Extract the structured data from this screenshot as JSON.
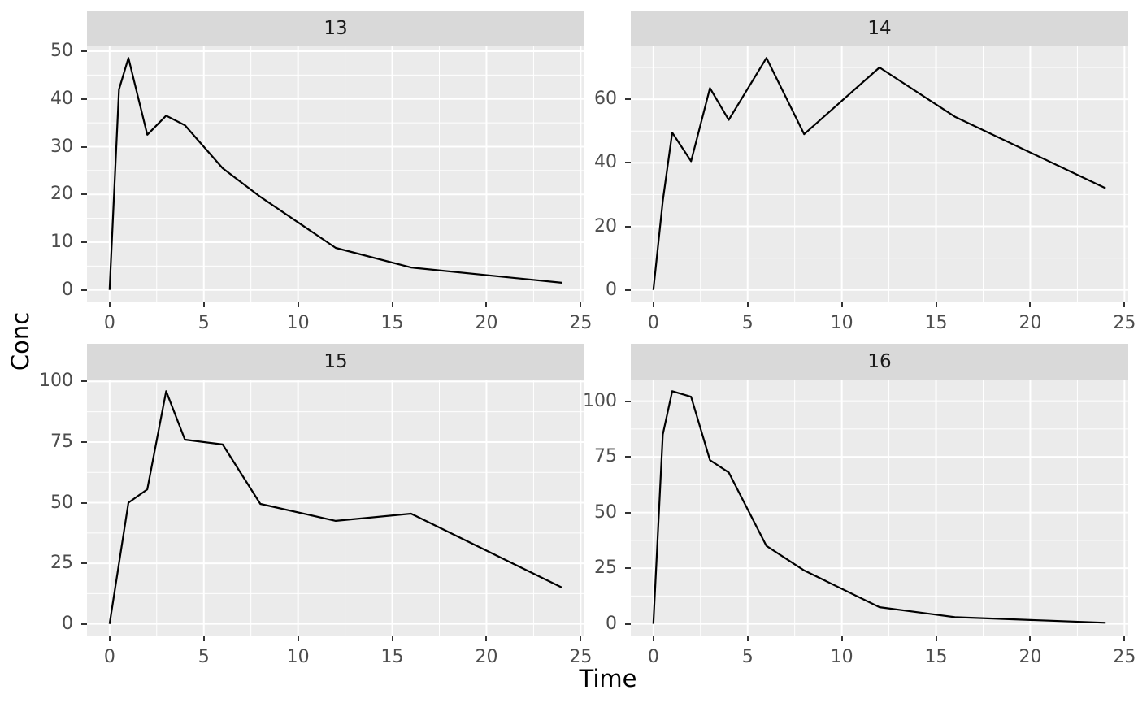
{
  "figure": {
    "background_color": "#FFFFFF",
    "panel_background_color": "#EBEBEB",
    "strip_background_color": "#D9D9D9",
    "grid_color": "#FFFFFF",
    "line_color": "#000000",
    "tick_mark_color": "#333333",
    "tick_label_color": "#4D4D4D",
    "strip_text_color": "#1A1A1A",
    "axis_title_color": "#000000"
  },
  "axis_titles": {
    "x": "Time",
    "y": "Conc"
  },
  "chart_data": {
    "type": "line",
    "style": "ggplot2-grey-faceted",
    "facet_labels": [
      "13",
      "14",
      "15",
      "16"
    ],
    "xlabel": "Time",
    "ylabel": "Conc",
    "x": [
      0,
      0.5,
      1,
      2,
      3,
      4,
      6,
      8,
      12,
      16,
      24
    ],
    "xlim": [
      -1.2,
      25.2
    ],
    "x_ticks": [
      0,
      5,
      10,
      15,
      20,
      25
    ],
    "grid": true,
    "legend": "none",
    "series": [
      {
        "name": "13",
        "values": [
          0,
          42,
          48.6,
          32.5,
          36.5,
          34.5,
          25.5,
          19.5,
          8.8,
          4.7,
          1.5
        ],
        "ylim": [
          -2.43,
          51.03
        ],
        "y_ticks": [
          0,
          10,
          20,
          30,
          40,
          50
        ]
      },
      {
        "name": "14",
        "values": [
          0,
          28,
          49.5,
          40.5,
          63.5,
          53.5,
          73,
          49,
          70,
          54.5,
          32
        ],
        "ylim": [
          -3.65,
          76.65
        ],
        "y_ticks": [
          0,
          20,
          40,
          60
        ]
      },
      {
        "name": "15",
        "values": [
          0,
          25,
          50,
          55.5,
          96,
          76,
          74,
          49.5,
          42.5,
          45.5,
          15
        ],
        "ylim": [
          -4.8,
          100.8
        ],
        "y_ticks": [
          0,
          25,
          50,
          75,
          100
        ]
      },
      {
        "name": "16",
        "values": [
          0,
          85,
          104.5,
          102,
          73.5,
          68,
          35,
          24,
          7.5,
          3,
          0.5
        ],
        "ylim": [
          -5.24,
          109.72
        ],
        "y_ticks": [
          0,
          25,
          50,
          75,
          100
        ]
      }
    ]
  }
}
